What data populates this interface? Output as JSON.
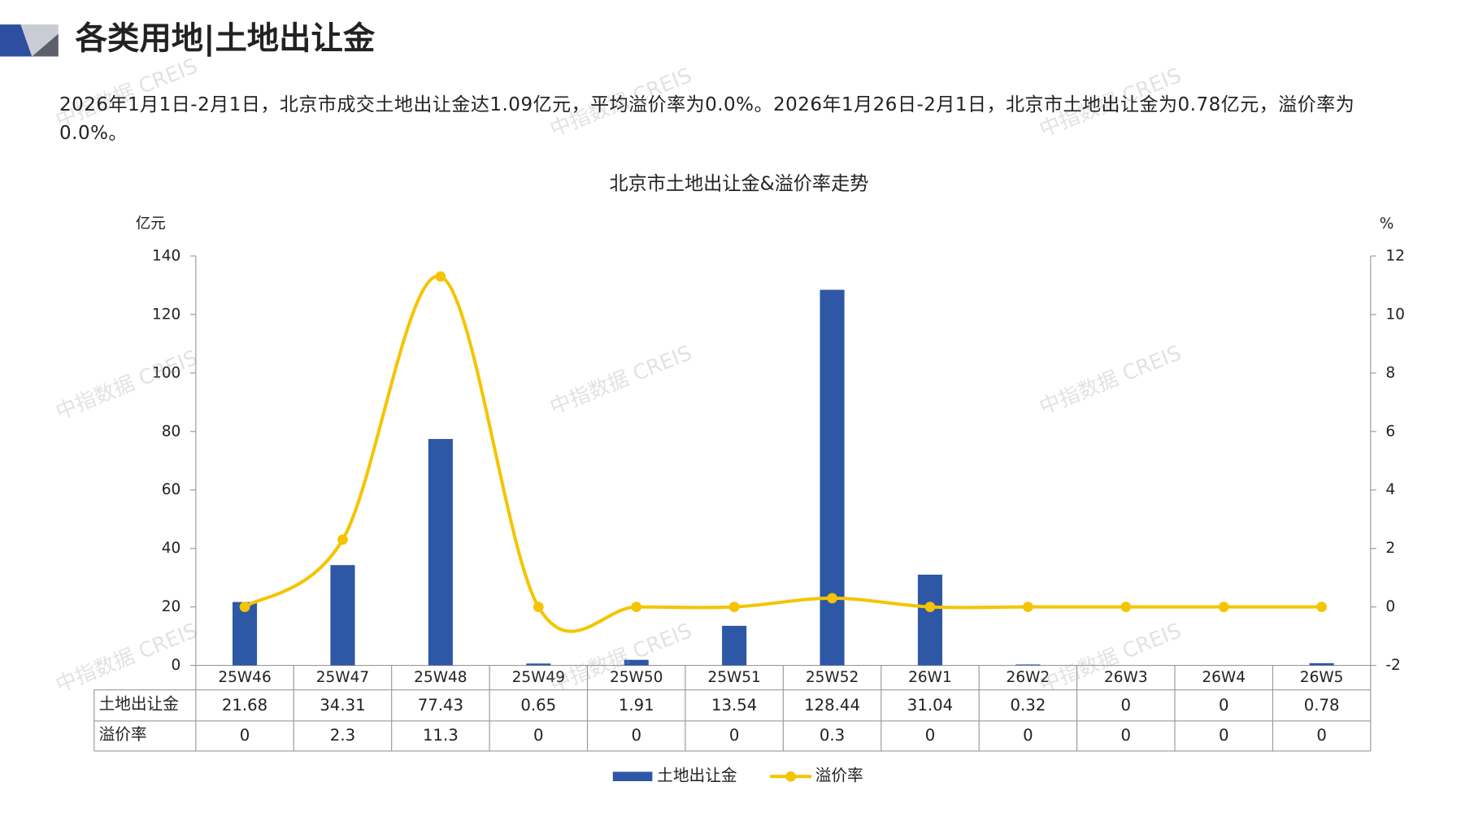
{
  "header": {
    "title": "各类用地|土地出让金",
    "text": "2026年1月1日-2月1日，北京市成交土地出让金达1.09亿元，平均溢价率为0.0%。2026年1月26日-2月1日，北京市土地出让金为0.78亿元，溢价率为0.0%。"
  },
  "watermark": "中指数据 CREIS",
  "chart_data": {
    "type": "bar-line",
    "title": "北京市土地出让金&溢价率走势",
    "y_unit": "亿元",
    "y2_unit": "%",
    "categories": [
      "25W46",
      "25W47",
      "25W48",
      "25W49",
      "25W50",
      "25W51",
      "25W52",
      "26W1",
      "26W2",
      "26W3",
      "26W4",
      "26W5"
    ],
    "series": [
      {
        "name": "土地出让金",
        "type": "bar",
        "color": "#2e58a6",
        "values": [
          21.68,
          34.31,
          77.43,
          0.65,
          1.91,
          13.54,
          128.44,
          31.04,
          0.32,
          0,
          0,
          0.78
        ]
      },
      {
        "name": "溢价率",
        "type": "line",
        "color": "#f5c400",
        "axis": "y2",
        "values": [
          0,
          2.3,
          11.3,
          0,
          0,
          0,
          0.3,
          0,
          0,
          0,
          0,
          0
        ]
      }
    ],
    "ylim": [
      0,
      140
    ],
    "yticks": [
      0,
      20,
      40,
      60,
      80,
      100,
      120,
      140
    ],
    "y2lim": [
      -2,
      12
    ],
    "y2ticks": [
      -2,
      0,
      2,
      4,
      6,
      8,
      10,
      12
    ],
    "legend": "bottom"
  }
}
